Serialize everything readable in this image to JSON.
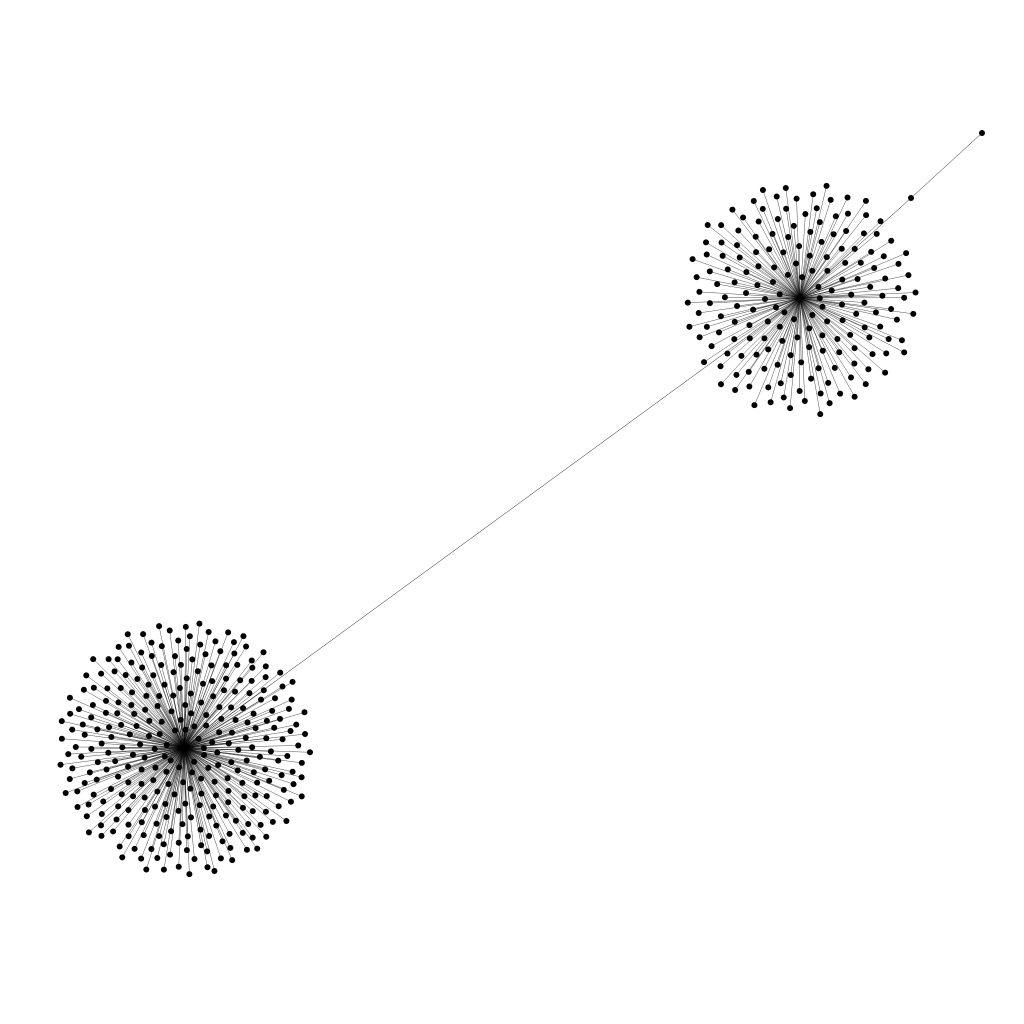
{
  "graph": {
    "type": "network",
    "background_color": "#ffffff",
    "node_color": "#000000",
    "edge_color": "#000000",
    "clusters": [
      {
        "id": "cluster-a",
        "hub": "hub-a",
        "leaf_count": 300
      },
      {
        "id": "cluster-b",
        "hub": "hub-b",
        "leaf_count": 180
      }
    ],
    "chain": [
      "hub-b",
      "chain-node-1",
      "chain-node-2"
    ],
    "bridge": [
      "hub-a",
      "hub-b"
    ]
  }
}
